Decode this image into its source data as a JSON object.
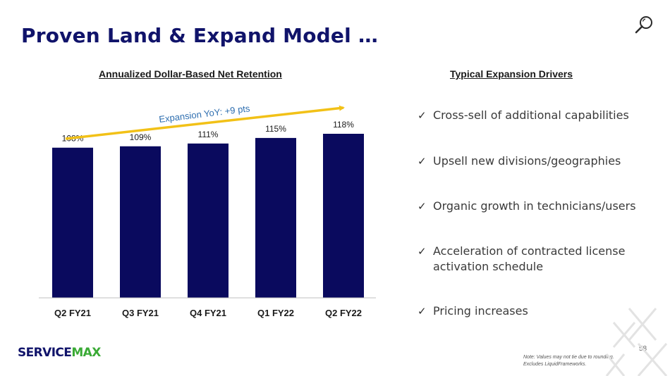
{
  "slide": {
    "title": "Proven Land & Expand Model …",
    "page_number": "58",
    "note_line1": "Note: Values may not tie due to rounding.",
    "note_line2": "Excludes LiquidFrameworks.",
    "logo_text_a": "SERVICE",
    "logo_text_b": "MAX",
    "icons": {
      "search": "search-icon",
      "watermark": "x-watermark-icon",
      "check": "check-icon"
    },
    "colors": {
      "title": "#10136a",
      "bar": "#0a0a5e",
      "arrow": "#f2c117",
      "annotation": "#2f6fb0",
      "logo_dark": "#10136a",
      "logo_green": "#3aaa35"
    }
  },
  "drivers": {
    "title": "Typical Expansion Drivers",
    "items": [
      {
        "check": "✓",
        "text": "Cross-sell of additional capabilities"
      },
      {
        "check": "✓",
        "text": "Upsell new divisions/geographies"
      },
      {
        "check": "✓",
        "text": "Organic growth in technicians/users"
      },
      {
        "check": "✓",
        "text": "Acceleration of contracted license activation schedule"
      },
      {
        "check": "✓",
        "text": "Pricing increases"
      }
    ]
  },
  "chart_data": {
    "type": "bar",
    "title": "Annualized Dollar-Based Net Retention",
    "categories": [
      "Q2 FY21",
      "Q3 FY21",
      "Q4 FY21",
      "Q1 FY22",
      "Q2 FY22"
    ],
    "values": [
      108,
      109,
      111,
      115,
      118
    ],
    "data_labels": [
      "108%",
      "109%",
      "111%",
      "115%",
      "118%"
    ],
    "annotation": "Expansion YoY: +9 pts",
    "ylabel": "",
    "xlabel": "",
    "ylim": [
      0,
      118
    ],
    "grid": false,
    "legend": "none"
  }
}
